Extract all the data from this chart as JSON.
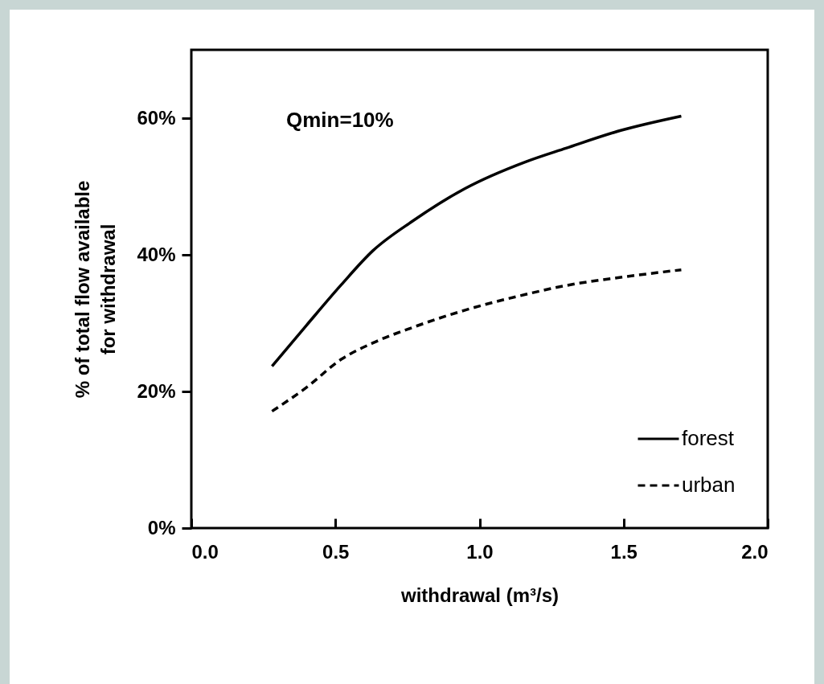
{
  "chart_data": {
    "type": "line",
    "xlabel": "withdrawal (m³/s)",
    "ylabel": "% of total  flow available for withdrawal",
    "annotations": [
      "Qmin=10%"
    ],
    "x": [
      0.28,
      0.4,
      0.52,
      0.63,
      0.77,
      0.95,
      1.16,
      1.3,
      1.49,
      1.7
    ],
    "series": [
      {
        "name": "forest",
        "color": "#000000",
        "line_style": "solid",
        "values": [
          23.7,
          29.7,
          35.6,
          40.6,
          45.0,
          49.7,
          53.6,
          55.6,
          58.2,
          60.3
        ]
      },
      {
        "name": "urban",
        "color": "#000000",
        "line_style": "dashed",
        "values": [
          17.1,
          20.6,
          24.7,
          27.1,
          29.4,
          31.9,
          34.2,
          35.5,
          36.7,
          37.8
        ]
      }
    ],
    "xlim": [
      0,
      2
    ],
    "xticks": [
      {
        "value": 0,
        "label": "0.0"
      },
      0.5,
      {
        "value": 1,
        "label": "1.0"
      },
      1.5,
      {
        "value": 2,
        "label": "2.0"
      }
    ],
    "ylim": [
      0,
      70
    ],
    "yticks": [
      {
        "value": 0,
        "label": "0%"
      },
      {
        "value": 20,
        "label": "20%"
      },
      {
        "value": 40,
        "label": "40%"
      },
      {
        "value": 60,
        "label": "60%"
      }
    ],
    "grid": false,
    "legend": "bottom right"
  }
}
